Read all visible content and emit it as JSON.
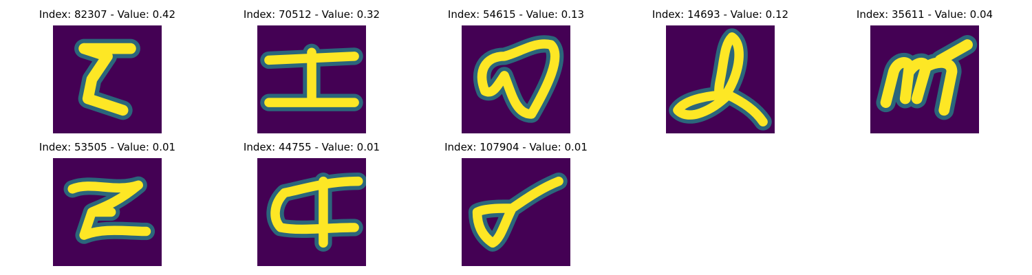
{
  "colormap": {
    "background": "#440154",
    "low": "#3b528b",
    "mid": "#21918c",
    "high": "#5ec962",
    "peak": "#fde725"
  },
  "grid": {
    "columns": 5,
    "rows": 2
  },
  "tiles": [
    {
      "title": "Index: 82307 - Value: 0.42",
      "glyph": "E-like handwritten character"
    },
    {
      "title": "Index: 70512 - Value: 0.32",
      "glyph": "I-like handwritten character"
    },
    {
      "title": "Index: 54615 - Value: 0.13",
      "glyph": "looped handwritten character"
    },
    {
      "title": "Index: 14693 - Value: 0.12",
      "glyph": "looped l-like handwritten character"
    },
    {
      "title": "Index: 35611 - Value: 0.04",
      "glyph": "m-like handwritten character"
    },
    {
      "title": "Index: 53505 - Value: 0.01",
      "glyph": "Z-like handwritten character"
    },
    {
      "title": "Index: 44755 - Value: 0.01",
      "glyph": "crossed-loop handwritten character"
    },
    {
      "title": "Index: 107904 - Value: 0.01",
      "glyph": "loop-and-stroke handwritten character"
    }
  ]
}
